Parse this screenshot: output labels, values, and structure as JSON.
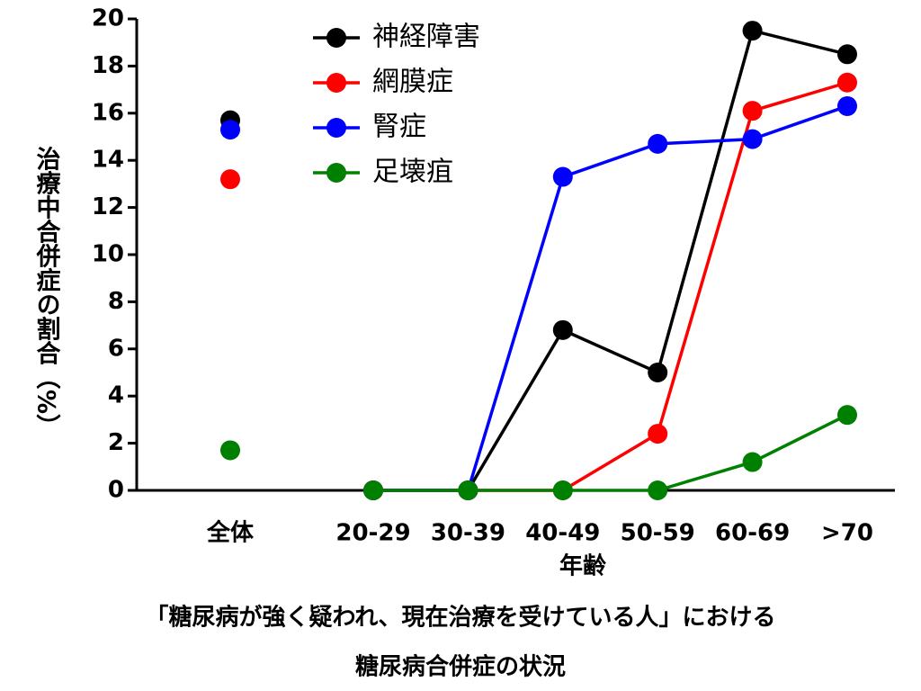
{
  "chart_data": {
    "type": "line",
    "title": [
      "「糖尿病が強く疑われ、現在治療を受けている人」における",
      "糖尿病合併症の状況"
    ],
    "x_label": "年齢",
    "y_label": "治療中合併症の割合（%）",
    "overall_category": "全体",
    "categories": [
      "20-29",
      "30-39",
      "40-49",
      "50-59",
      "60-69",
      ">70"
    ],
    "series": [
      {
        "name": "神経障害",
        "color": "#000000",
        "overall": 15.7,
        "values": [
          0,
          0,
          6.8,
          5.0,
          19.5,
          18.5
        ]
      },
      {
        "name": "網膜症",
        "color": "#ff0000",
        "overall": 13.2,
        "values": [
          0,
          0,
          0,
          2.4,
          16.1,
          17.3
        ]
      },
      {
        "name": "腎症",
        "color": "#0000ff",
        "overall": 15.3,
        "values": [
          0,
          0,
          13.3,
          14.7,
          14.9,
          16.3
        ]
      },
      {
        "name": "足壊疽",
        "color": "#008000",
        "overall": 1.7,
        "values": [
          0,
          0,
          0,
          0,
          1.2,
          3.2
        ]
      }
    ],
    "ylim": [
      0,
      20
    ],
    "yticks": [
      0,
      2,
      4,
      6,
      8,
      10,
      12,
      14,
      16,
      18,
      20
    ],
    "grid": false,
    "legend": "top-left"
  }
}
